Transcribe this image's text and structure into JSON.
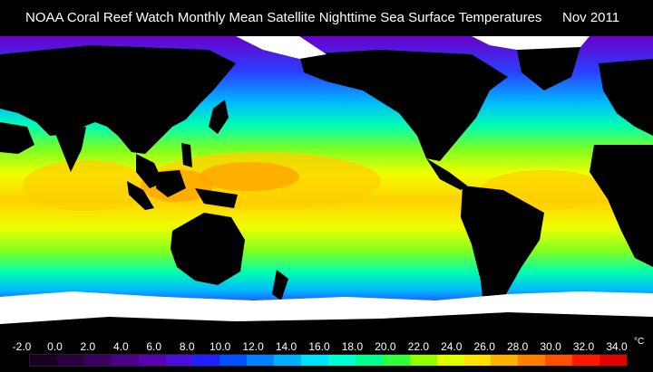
{
  "title": "NOAA Coral Reef Watch Monthly Mean Satellite Nighttime Sea Surface Temperatures",
  "date": "Nov 2011",
  "legend": {
    "unit": "°C",
    "labels": [
      "-2.0",
      "0.0",
      "2.0",
      "4.0",
      "6.0",
      "8.0",
      "10.0",
      "12.0",
      "14.0",
      "16.0",
      "18.0",
      "20.0",
      "22.0",
      "24.0",
      "26.0",
      "28.0",
      "30.0",
      "32.0",
      "34.0"
    ],
    "colors": [
      "#1a0020",
      "#2a0040",
      "#3a0060",
      "#4a0088",
      "#5a00b0",
      "#4a10d8",
      "#2020ff",
      "#0050ff",
      "#0080ff",
      "#00b0ff",
      "#00e0ff",
      "#00ffd0",
      "#00ff90",
      "#30ff40",
      "#90ff00",
      "#e0ff00",
      "#ffe000",
      "#ffb000",
      "#ff8000",
      "#ff5000",
      "#ff1800",
      "#e00000"
    ]
  },
  "map": {
    "colors": {
      "land": "#000000",
      "ice": "#ffffff",
      "polar": "#6a00c8",
      "cold": "#2a40ff",
      "cool": "#00b8ff",
      "mild": "#00ffb0",
      "warm": "#80ff20",
      "hot": "#f0ff00",
      "warmer": "#ffd000",
      "hottest": "#ffa500"
    }
  }
}
